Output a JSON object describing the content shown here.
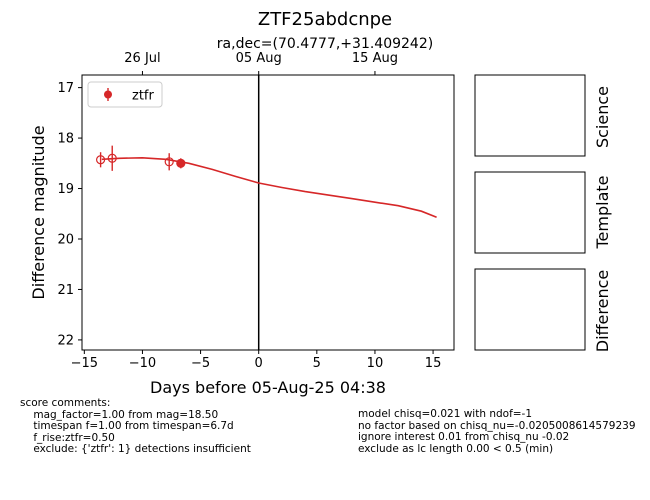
{
  "chart_data": {
    "type": "scatter",
    "title": "ZTF25abdcnpe",
    "subtitle": "ra,dec=(70.4777,+31.409242)",
    "xlabel": "Days before 05-Aug-25 04:38",
    "ylabel": "Difference magnitude",
    "xlim": [
      -15.2,
      16.8
    ],
    "ylim": [
      22.2,
      16.75
    ],
    "y_inverted": true,
    "x_ticks": [
      -15,
      -10,
      -5,
      0,
      5,
      10,
      15
    ],
    "y_ticks": [
      17,
      18,
      19,
      20,
      21,
      22
    ],
    "top_axis_ticks": [
      {
        "x": -10,
        "label": "26 Jul"
      },
      {
        "x": 0,
        "label": "05 Aug"
      },
      {
        "x": 10,
        "label": "15 Aug"
      }
    ],
    "vertical_line_x": 0,
    "legend": {
      "position": "top-left",
      "label": "ztfr"
    },
    "color": "#d62728",
    "series": [
      {
        "name": "ztfr",
        "points": [
          {
            "x": -13.6,
            "y": 18.43,
            "yerr": 0.15,
            "filled": false
          },
          {
            "x": -12.6,
            "y": 18.4,
            "yerr": 0.25,
            "filled": false
          },
          {
            "x": -7.7,
            "y": 18.47,
            "yerr": 0.17,
            "filled": false
          },
          {
            "x": -6.7,
            "y": 18.5,
            "yerr": 0.1,
            "filled": true
          }
        ],
        "model_curve": [
          {
            "x": -13.5,
            "y": 18.42
          },
          {
            "x": -12.0,
            "y": 18.4
          },
          {
            "x": -10.0,
            "y": 18.39
          },
          {
            "x": -8.0,
            "y": 18.42
          },
          {
            "x": -6.0,
            "y": 18.5
          },
          {
            "x": -4.0,
            "y": 18.62
          },
          {
            "x": -2.0,
            "y": 18.76
          },
          {
            "x": 0.0,
            "y": 18.89
          },
          {
            "x": 2.0,
            "y": 18.98
          },
          {
            "x": 4.0,
            "y": 19.06
          },
          {
            "x": 6.0,
            "y": 19.13
          },
          {
            "x": 8.0,
            "y": 19.2
          },
          {
            "x": 10.0,
            "y": 19.27
          },
          {
            "x": 12.0,
            "y": 19.34
          },
          {
            "x": 14.0,
            "y": 19.45
          },
          {
            "x": 15.3,
            "y": 19.57
          }
        ]
      }
    ],
    "cutout_labels": [
      "Science",
      "Template",
      "Difference"
    ]
  },
  "comments": {
    "left": "score comments:\n    mag_factor=1.00 from mag=18.50\n    timespan f=1.00 from timespan=6.7d\n    f_rise:ztfr=0.50\n    exclude: {'ztfr': 1} detections insufficient",
    "right": "model chisq=0.021 with ndof=-1\nno factor based on chisq_nu=-0.0205008614579239\nignore interest 0.01 from chisq_nu -0.02\nexclude as lc length 0.00 < 0.5 (min)"
  }
}
